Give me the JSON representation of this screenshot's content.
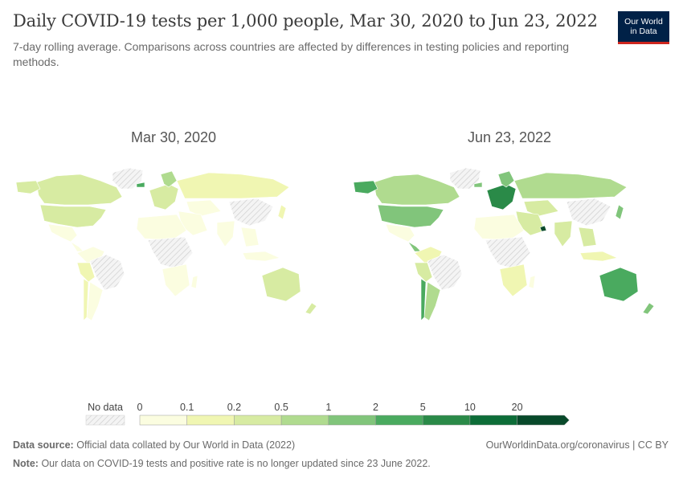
{
  "header": {
    "title": "Daily COVID-19 tests per 1,000 people, Mar 30, 2020 to Jun 23, 2022",
    "subtitle": "7-day rolling average. Comparisons across countries are affected by differences in testing policies and reporting methods."
  },
  "logo": {
    "line1": "Our World",
    "line2": "in Data",
    "bg_color": "#002147",
    "accent_color": "#ce261e"
  },
  "maps": [
    {
      "date_label": "Mar 30, 2020"
    },
    {
      "date_label": "Jun 23, 2022"
    }
  ],
  "legend": {
    "no_data_label": "No data",
    "bins": [
      {
        "from": "0",
        "to": "0.1",
        "color": "#fbfde0"
      },
      {
        "from": "0.1",
        "to": "0.2",
        "color": "#f0f6b2"
      },
      {
        "from": "0.2",
        "to": "0.5",
        "color": "#d7eba2"
      },
      {
        "from": "0.5",
        "to": "1",
        "color": "#b0db8f"
      },
      {
        "from": "1",
        "to": "2",
        "color": "#81c57b"
      },
      {
        "from": "2",
        "to": "5",
        "color": "#4aaa5f"
      },
      {
        "from": "5",
        "to": "10",
        "color": "#2a8a48"
      },
      {
        "from": "10",
        "to": "20",
        "color": "#0d6d38"
      },
      {
        "from": "20",
        "to": "",
        "color": "#08492a"
      }
    ],
    "tick_labels": [
      "0",
      "0.1",
      "0.2",
      "0.5",
      "1",
      "2",
      "5",
      "10",
      "20"
    ]
  },
  "footer": {
    "source_label": "Data source:",
    "source_text": "Official data collated by Our World in Data (2022)",
    "url": "OurWorldinData.org/coronavirus | CC BY",
    "note_label": "Note:",
    "note_text": "Our data on COVID-19 tests and positive rate is no longer updated since 23 June 2022."
  }
}
